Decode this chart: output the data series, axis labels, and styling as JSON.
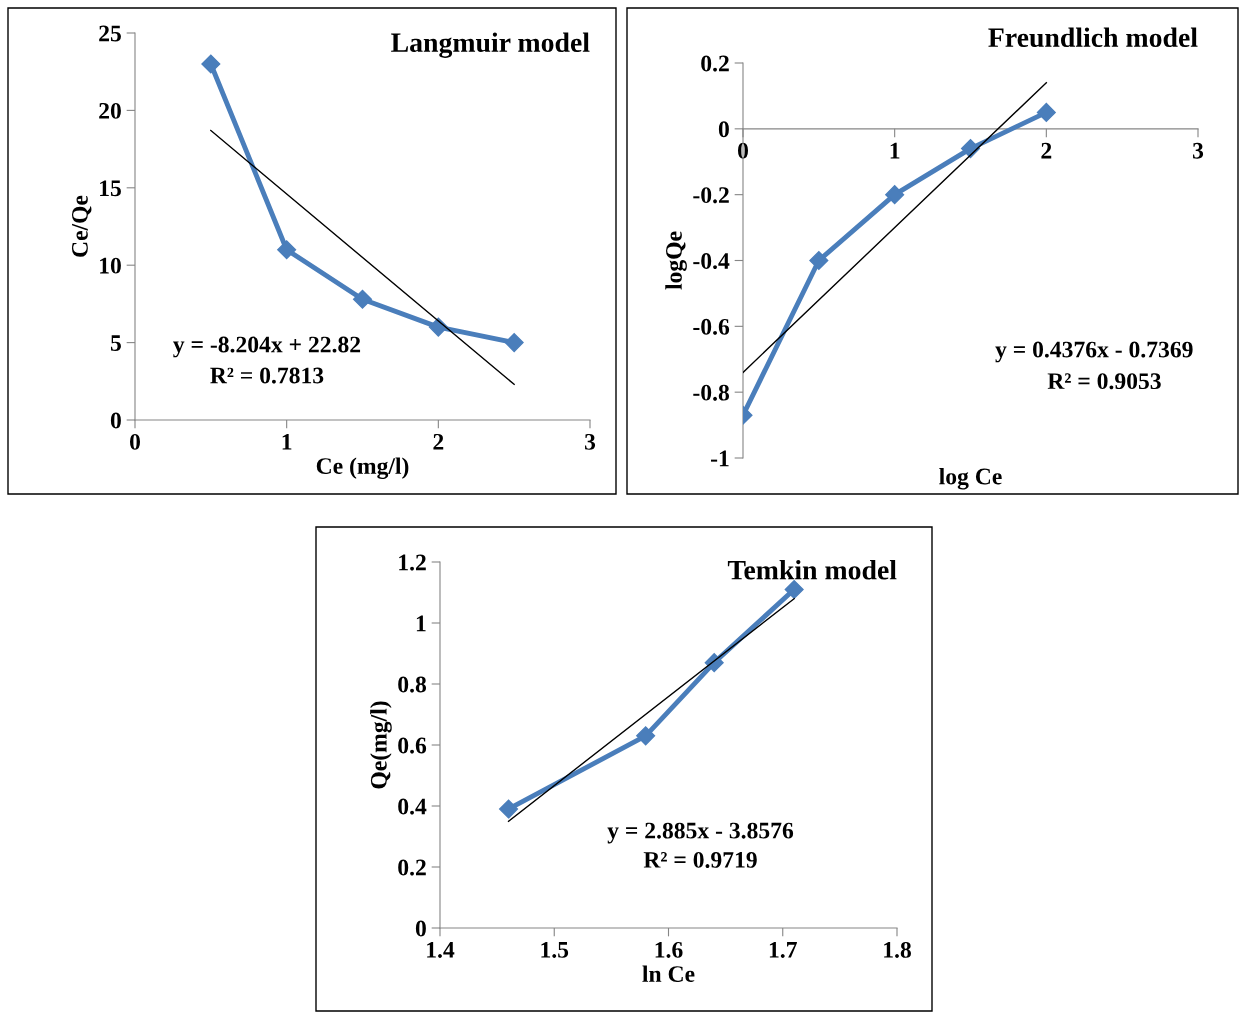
{
  "chart_data": [
    {
      "type": "line",
      "title": "Langmuir model",
      "xlabel": "Ce (mg/l)",
      "ylabel": "Ce/Qe",
      "xlim": [
        0,
        3
      ],
      "xticks": [
        0,
        1,
        2,
        3
      ],
      "ylim": [
        0,
        25
      ],
      "yticks": [
        0,
        5,
        10,
        15,
        20,
        25
      ],
      "grid": false,
      "legend": false,
      "annotations": [
        "y = -8.204x + 22.82",
        "R² = 0.7813"
      ],
      "series": [
        {
          "x": [
            0.5,
            1,
            1.5,
            2,
            2.5
          ],
          "values": [
            23,
            11,
            7.8,
            6,
            5
          ],
          "color": "#4a7ebb",
          "marker": "diamond",
          "line_style": "solid"
        },
        {
          "x": [
            0.5,
            2.5
          ],
          "values": [
            18.7,
            2.3
          ],
          "color": "#000000",
          "marker": "none",
          "line_style": "solid"
        }
      ]
    },
    {
      "type": "line",
      "title": "Freundlich model",
      "xlabel": "log Ce",
      "ylabel": "logQe",
      "xlim": [
        0,
        3
      ],
      "xticks": [
        0,
        1,
        2,
        3
      ],
      "ylim": [
        -1,
        0.2
      ],
      "yticks": [
        -1,
        -0.8,
        -0.6,
        -0.4,
        -0.2,
        0,
        0.2
      ],
      "grid": false,
      "legend": false,
      "annotations": [
        "y = 0.4376x - 0.7369",
        "R² = 0.9053"
      ],
      "series": [
        {
          "x": [
            0,
            0.5,
            1,
            1.5,
            2
          ],
          "values": [
            -0.87,
            -0.4,
            -0.2,
            -0.06,
            0.05
          ],
          "color": "#4a7ebb",
          "marker": "diamond",
          "line_style": "solid"
        },
        {
          "x": [
            0,
            2
          ],
          "values": [
            -0.74,
            0.14
          ],
          "color": "#000000",
          "marker": "none",
          "line_style": "solid"
        }
      ]
    },
    {
      "type": "line",
      "title": "Temkin model",
      "xlabel": "ln Ce",
      "ylabel": "Qe(mg/l)",
      "xlim": [
        1.4,
        1.8
      ],
      "xticks": [
        1.4,
        1.5,
        1.6,
        1.7,
        1.8
      ],
      "ylim": [
        0,
        1.2
      ],
      "yticks": [
        0,
        0.2,
        0.4,
        0.6,
        0.8,
        1,
        1.2
      ],
      "grid": false,
      "legend": false,
      "annotations": [
        "y = 2.885x - 3.8576",
        "R² = 0.9719"
      ],
      "series": [
        {
          "x": [
            1.46,
            1.58,
            1.64,
            1.71
          ],
          "values": [
            0.39,
            0.63,
            0.87,
            1.11
          ],
          "color": "#4a7ebb",
          "marker": "diamond",
          "line_style": "solid"
        },
        {
          "x": [
            1.46,
            1.71
          ],
          "values": [
            0.35,
            1.08
          ],
          "color": "#000000",
          "marker": "none",
          "line_style": "solid"
        }
      ]
    }
  ]
}
